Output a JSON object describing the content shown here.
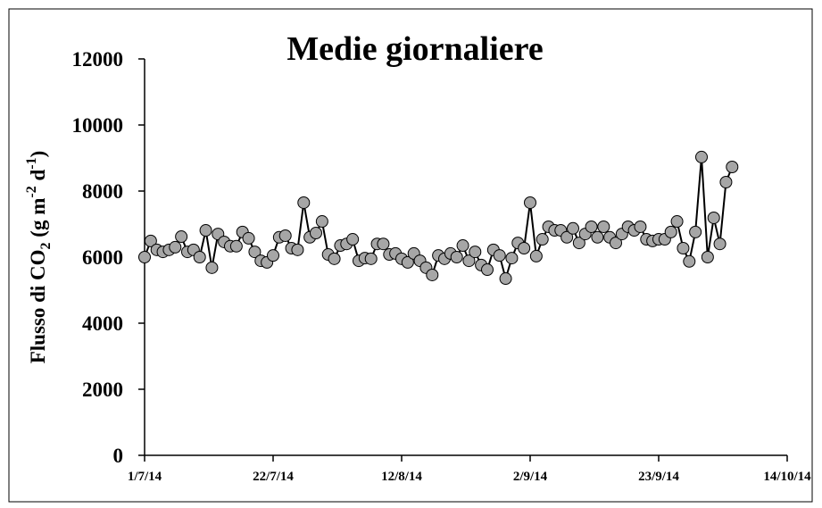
{
  "chart_data": {
    "type": "line",
    "title": "Medie giornaliere",
    "ylabel": [
      "Flusso di CO",
      "2",
      " (g m",
      "-2",
      " d",
      "-1",
      ")"
    ],
    "x": [
      "2014-07-01",
      "2014-07-02",
      "2014-07-03",
      "2014-07-04",
      "2014-07-05",
      "2014-07-06",
      "2014-07-07",
      "2014-07-08",
      "2014-07-09",
      "2014-07-10",
      "2014-07-11",
      "2014-07-12",
      "2014-07-13",
      "2014-07-14",
      "2014-07-15",
      "2014-07-16",
      "2014-07-17",
      "2014-07-18",
      "2014-07-19",
      "2014-07-20",
      "2014-07-21",
      "2014-07-22",
      "2014-07-23",
      "2014-07-24",
      "2014-07-25",
      "2014-07-26",
      "2014-07-27",
      "2014-07-28",
      "2014-07-29",
      "2014-07-30",
      "2014-07-31",
      "2014-08-01",
      "2014-08-02",
      "2014-08-03",
      "2014-08-04",
      "2014-08-05",
      "2014-08-06",
      "2014-08-07",
      "2014-08-08",
      "2014-08-09",
      "2014-08-10",
      "2014-08-11",
      "2014-08-12",
      "2014-08-13",
      "2014-08-14",
      "2014-08-15",
      "2014-08-16",
      "2014-08-17",
      "2014-08-18",
      "2014-08-19",
      "2014-08-20",
      "2014-08-21",
      "2014-08-22",
      "2014-08-23",
      "2014-08-24",
      "2014-08-25",
      "2014-08-26",
      "2014-08-27",
      "2014-08-28",
      "2014-08-29",
      "2014-08-30",
      "2014-08-31",
      "2014-09-01",
      "2014-09-02",
      "2014-09-03",
      "2014-09-04",
      "2014-09-05",
      "2014-09-06",
      "2014-09-07",
      "2014-09-08",
      "2014-09-09",
      "2014-09-10",
      "2014-09-11",
      "2014-09-12",
      "2014-09-13",
      "2014-09-14",
      "2014-09-15",
      "2014-09-16",
      "2014-09-17",
      "2014-09-18",
      "2014-09-19",
      "2014-09-20",
      "2014-09-21",
      "2014-09-22",
      "2014-09-23",
      "2014-09-24",
      "2014-09-25",
      "2014-09-26",
      "2014-09-27",
      "2014-09-28",
      "2014-09-29",
      "2014-09-30",
      "2014-10-01",
      "2014-10-02",
      "2014-10-03",
      "2014-10-04",
      "2014-10-05"
    ],
    "series": [
      {
        "color": "#a6a6a6",
        "values": [
          6000,
          6490,
          6220,
          6160,
          6220,
          6300,
          6620,
          6160,
          6220,
          6000,
          6810,
          5680,
          6700,
          6460,
          6330,
          6330,
          6760,
          6570,
          6160,
          5890,
          5840,
          6050,
          6600,
          6650,
          6270,
          6220,
          7650,
          6600,
          6730,
          7080,
          6080,
          5950,
          6350,
          6400,
          6540,
          5890,
          5970,
          5950,
          6400,
          6400,
          6080,
          6110,
          5950,
          5840,
          6110,
          5890,
          5680,
          5460,
          6050,
          5950,
          6110,
          6000,
          6350,
          5890,
          6160,
          5760,
          5620,
          6220,
          6050,
          5350,
          5970,
          6430,
          6270,
          7650,
          6030,
          6540,
          6920,
          6810,
          6810,
          6600,
          6870,
          6430,
          6700,
          6920,
          6600,
          6920,
          6600,
          6430,
          6700,
          6920,
          6810,
          6920,
          6540,
          6490,
          6540,
          6540,
          6760,
          7080,
          6270,
          5870,
          6760,
          9030,
          6000,
          7190,
          6400,
          8270,
          8730
        ]
      }
    ],
    "xlim": [
      "2014-07-01",
      "2014-10-14"
    ],
    "xticks": [
      {
        "value": "2014-07-01",
        "label": "1/7/14"
      },
      {
        "value": "2014-07-22",
        "label": "22/7/14"
      },
      {
        "value": "2014-08-12",
        "label": "12/8/14"
      },
      {
        "value": "2014-09-02",
        "label": "2/9/14"
      },
      {
        "value": "2014-09-23",
        "label": "23/9/14"
      },
      {
        "value": "2014-10-14",
        "label": "14/10/14"
      }
    ],
    "ylim": [
      0,
      12000
    ],
    "yticks": [
      0,
      2000,
      4000,
      6000,
      8000,
      10000,
      12000
    ],
    "grid": false
  }
}
